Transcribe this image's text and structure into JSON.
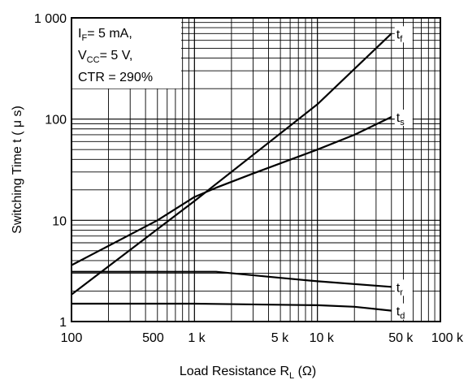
{
  "chart_data": {
    "type": "line",
    "xscale": "log",
    "yscale": "log",
    "xlim": [
      100,
      100000
    ],
    "ylim": [
      1,
      1000
    ],
    "grid": true,
    "xlabel": {
      "main": "Load Resistance R",
      "sub": "L",
      "unit": " (Ω)"
    },
    "ylabel": "Switching Time t ( μ s)",
    "xticks": [
      {
        "value": 100,
        "label": "100"
      },
      {
        "value": 500,
        "label": "500"
      },
      {
        "value": 1000,
        "label": "1 k"
      },
      {
        "value": 5000,
        "label": "5 k"
      },
      {
        "value": 10000,
        "label": "10 k"
      },
      {
        "value": 50000,
        "label": "50 k"
      },
      {
        "value": 100000,
        "label": "100 k"
      }
    ],
    "yticks": [
      {
        "value": 1,
        "label": "1"
      },
      {
        "value": 10,
        "label": "10"
      },
      {
        "value": 100,
        "label": "100"
      },
      {
        "value": 1000,
        "label": "1 000"
      }
    ],
    "conditions": [
      {
        "main": "I",
        "sub": "F",
        "rest": "= 5 mA,"
      },
      {
        "main": "V",
        "sub": "CC",
        "rest": "= 5 V,"
      },
      {
        "main": "CTR = 290%",
        "sub": "",
        "rest": ""
      }
    ],
    "series": [
      {
        "name": "tf",
        "label_main": "t",
        "label_sub": "f",
        "label_anchor": "end",
        "x": [
          100,
          1000,
          10000,
          40000
        ],
        "y": [
          1.85,
          15.5,
          140,
          700
        ]
      },
      {
        "name": "ts",
        "label_main": "t",
        "label_sub": "s",
        "label_anchor": "end",
        "x": [
          100,
          500,
          1000,
          1500,
          3000,
          10000,
          20000,
          40000
        ],
        "y": [
          3.6,
          10,
          17,
          21,
          29,
          50,
          70,
          105
        ]
      },
      {
        "name": "tr",
        "label_main": "t",
        "label_sub": "r",
        "label_anchor": "end",
        "x": [
          100,
          1500,
          5000,
          10000,
          40000
        ],
        "y": [
          3.1,
          3.1,
          2.7,
          2.5,
          2.2
        ]
      },
      {
        "name": "td",
        "label_main": "t",
        "label_sub": "d",
        "label_anchor": "end",
        "x": [
          100,
          1000,
          10000,
          20000,
          40000
        ],
        "y": [
          1.5,
          1.5,
          1.45,
          1.4,
          1.28
        ]
      }
    ]
  }
}
